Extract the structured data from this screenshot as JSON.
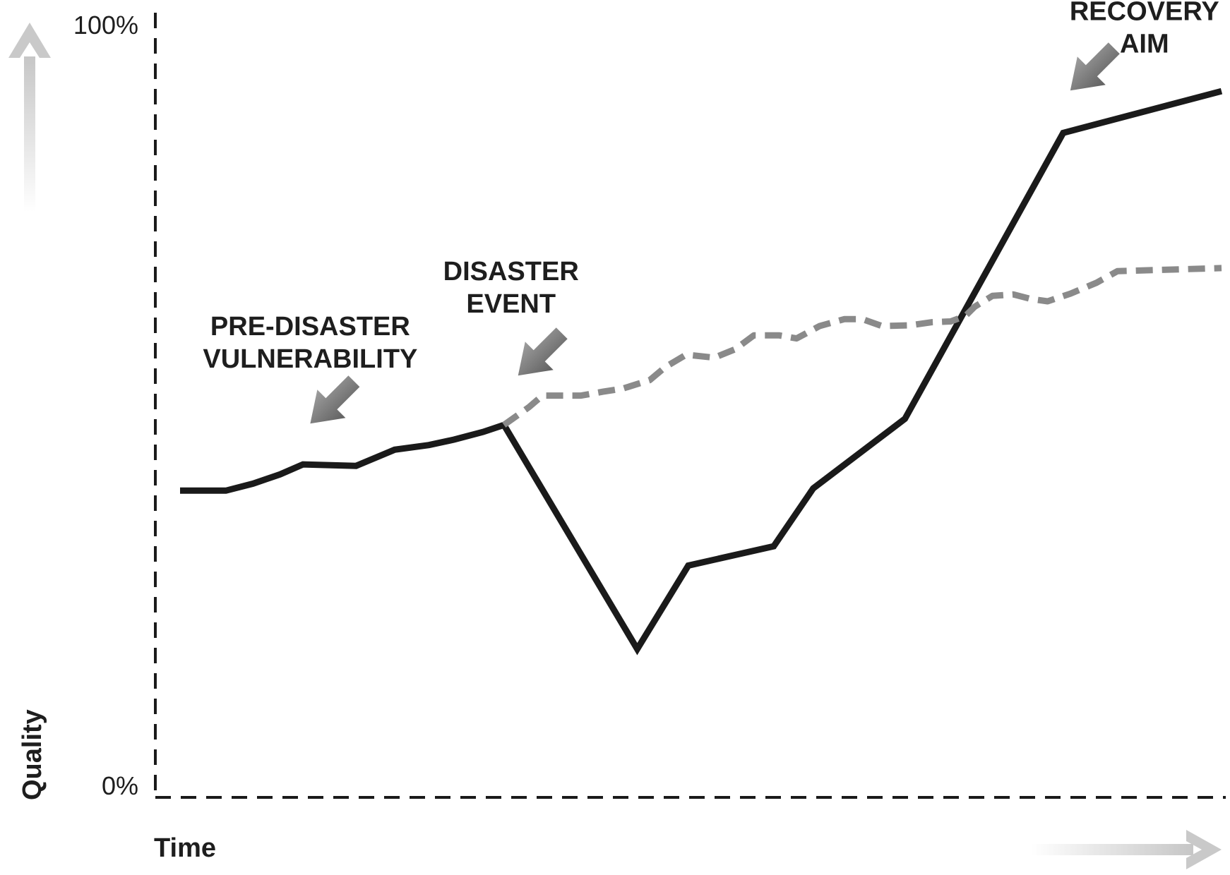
{
  "chart_data": {
    "type": "line",
    "title": "",
    "xlabel": "Time",
    "ylabel": "Quality",
    "y_ticks": [
      "100%",
      "0%"
    ],
    "ylim": [
      0,
      100
    ],
    "xlim": [
      0,
      100
    ],
    "grid": false,
    "series": [
      {
        "style": "solid",
        "color": "#1a1a1a",
        "points": [
          [
            0,
            39.7
          ],
          [
            4.4,
            39.7
          ],
          [
            7,
            40.6
          ],
          [
            9.6,
            41.8
          ],
          [
            11.8,
            43.1
          ],
          [
            16.9,
            42.9
          ],
          [
            20.6,
            45.0
          ],
          [
            23.9,
            45.6
          ],
          [
            26.3,
            46.3
          ],
          [
            29.1,
            47.3
          ],
          [
            31.1,
            48.2
          ],
          [
            43.9,
            19.2
          ],
          [
            48.8,
            30.0
          ],
          [
            57.0,
            32.5
          ],
          [
            60.8,
            40.0
          ],
          [
            69.6,
            49.0
          ],
          [
            84.8,
            86.0
          ],
          [
            100,
            91.4
          ]
        ]
      },
      {
        "style": "dashed",
        "color": "#8a8a8a",
        "points": [
          [
            31.1,
            48.2
          ],
          [
            33.5,
            50.5
          ],
          [
            34.8,
            52.0
          ],
          [
            37.0,
            52.0
          ],
          [
            38.5,
            52.0
          ],
          [
            40.6,
            52.5
          ],
          [
            42.5,
            52.9
          ],
          [
            45.1,
            54.0
          ],
          [
            46.6,
            55.7
          ],
          [
            48.6,
            57.3
          ],
          [
            51.3,
            56.9
          ],
          [
            53.3,
            58.0
          ],
          [
            55.1,
            59.8
          ],
          [
            57.5,
            59.8
          ],
          [
            59.2,
            59.4
          ],
          [
            61.4,
            61.0
          ],
          [
            63.8,
            61.9
          ],
          [
            65.5,
            61.9
          ],
          [
            67.4,
            61.0
          ],
          [
            70.1,
            61.1
          ],
          [
            72.2,
            61.5
          ],
          [
            74.0,
            61.6
          ],
          [
            75.4,
            62.3
          ],
          [
            76.3,
            63.5
          ],
          [
            78.0,
            64.9
          ],
          [
            80.0,
            65.1
          ],
          [
            81.7,
            64.5
          ],
          [
            83.3,
            64.2
          ],
          [
            85.5,
            65.2
          ],
          [
            88.0,
            66.6
          ],
          [
            90.0,
            68.1
          ],
          [
            100,
            68.5
          ]
        ]
      }
    ],
    "annotations": [
      {
        "lines": [
          "PRE-DISASTER",
          "VULNERABILITY"
        ],
        "x": 12.5,
        "y": 42.9
      },
      {
        "lines": [
          "DISASTER",
          "EVENT"
        ],
        "x": 31.1,
        "y": 48.2
      },
      {
        "lines": [
          "RECOVERY",
          "AIM"
        ],
        "x": 84.8,
        "y": 86.0
      }
    ],
    "legend": "none"
  }
}
